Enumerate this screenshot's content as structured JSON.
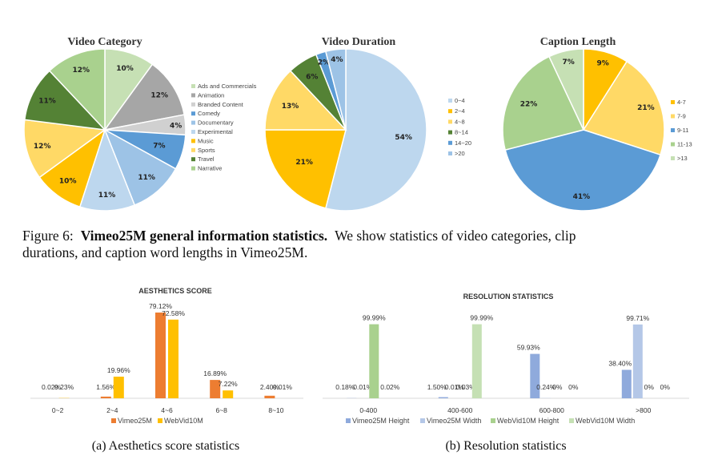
{
  "figure6_caption": {
    "label": "Figure 6:",
    "bold": "Vimeo25M general information statistics.",
    "line1_rest": "We show statistics of video categories, clip",
    "line2": "durations, and caption word lengths in Vimeo25M."
  },
  "subcaptions": {
    "a": "(a) Aesthetics score statistics",
    "b": "(b) Resolution statistics"
  },
  "chart_data": [
    {
      "type": "pie",
      "title": "Video Category",
      "categories": [
        "Ads and Commercials",
        "Animation",
        "Branded Content",
        "Comedy",
        "Documentary",
        "Experimental",
        "Music",
        "Sports",
        "Travel",
        "Narrative"
      ],
      "values": [
        10,
        12,
        4,
        7,
        11,
        11,
        10,
        12,
        11,
        12
      ],
      "colors": [
        "#c6e0b4",
        "#a6a6a6",
        "#d0d0d0",
        "#5b9bd5",
        "#9dc3e6",
        "#bdd7ee",
        "#ffc000",
        "#ffd966",
        "#548235",
        "#a9d18e"
      ],
      "legend_position": "right"
    },
    {
      "type": "pie",
      "title": "Video Duration",
      "categories": [
        "0~4",
        "2~4",
        "4~8",
        "8~14",
        "14~20",
        ">20"
      ],
      "values": [
        54,
        21,
        13,
        6,
        2,
        4
      ],
      "colors": [
        "#bdd7ee",
        "#ffc000",
        "#ffd966",
        "#548235",
        "#5b9bd5",
        "#9dc3e6"
      ],
      "legend_position": "right"
    },
    {
      "type": "pie",
      "title": "Caption Length",
      "categories": [
        "4-7",
        "7-9",
        "9-11",
        "11-13",
        ">13"
      ],
      "values": [
        9,
        21,
        41,
        22,
        7
      ],
      "colors": [
        "#ffc000",
        "#ffd966",
        "#5b9bd5",
        "#a9d18e",
        "#c6e0b4"
      ],
      "legend_position": "right"
    },
    {
      "type": "bar",
      "title": "AESTHETICS SCORE",
      "categories": [
        "0~2",
        "2~4",
        "4~6",
        "6~8",
        "8~10"
      ],
      "series": [
        {
          "name": "Vimeo25M",
          "values": [
            0.02,
            1.56,
            79.12,
            16.89,
            2.4
          ],
          "labels": [
            "0.02%",
            "1.56%",
            "79.12%",
            "16.89%",
            "2.40%"
          ],
          "color": "#ed7d31"
        },
        {
          "name": "WebVid10M",
          "values": [
            0.23,
            19.96,
            72.58,
            7.22,
            0.01
          ],
          "labels": [
            "0.23%",
            "19.96%",
            "72.58%",
            "7.22%",
            "0.01%"
          ],
          "color": "#ffc000"
        }
      ],
      "ylim": [
        0,
        85
      ],
      "legend_position": "bottom"
    },
    {
      "type": "bar",
      "title": "RESOLUTION STATISTICS",
      "categories": [
        "0-400",
        "400-600",
        "600-800",
        ">800"
      ],
      "series": [
        {
          "name": "Vimeo25M Height",
          "values": [
            0.18,
            1.5,
            59.93,
            38.4
          ],
          "labels": [
            "0.18%",
            "1.50%",
            "59.93%",
            "38.40%"
          ],
          "color": "#8faadc"
        },
        {
          "name": "Vimeo25M Width",
          "values": [
            0.01,
            0.01,
            0.24,
            99.71
          ],
          "labels": [
            "0.01%",
            "0.01%",
            "0.24%",
            "99.71%"
          ],
          "color": "#b4c7e7"
        },
        {
          "name": "WebVid10M Height",
          "values": [
            99.99,
            0.03,
            0,
            0
          ],
          "labels": [
            "99.99%",
            "0.03%",
            "0%",
            "0%"
          ],
          "color": "#a9d18e"
        },
        {
          "name": "WebVid10M Width",
          "values": [
            0.02,
            99.99,
            0,
            0
          ],
          "labels": [
            "0.02%",
            "99.99%",
            "0%",
            "0%"
          ],
          "color": "#c5e0b4"
        }
      ],
      "ylim": [
        0,
        105
      ],
      "legend_position": "bottom"
    }
  ]
}
